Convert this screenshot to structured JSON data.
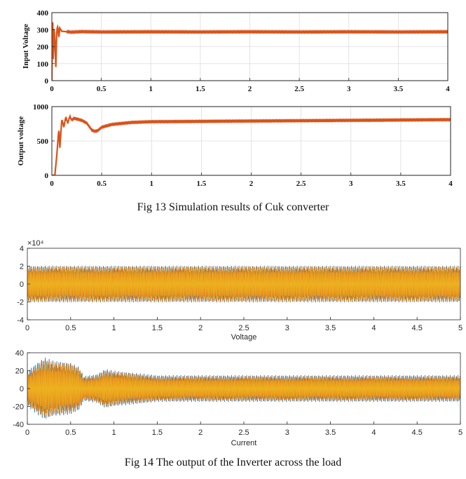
{
  "chart_data": [
    {
      "type": "line",
      "ylabel": "Input Voltage",
      "xlim": [
        0,
        4
      ],
      "ylim": [
        0,
        400
      ],
      "xticks": [
        "0",
        "0.5",
        "1",
        "1.5",
        "2",
        "2.5",
        "3",
        "3.5",
        "4"
      ],
      "yticks": [
        "0",
        "100",
        "200",
        "300",
        "400"
      ],
      "grid": true,
      "color": "#d95319",
      "series": [
        {
          "x": [
            0,
            0.005,
            0.01,
            0.015,
            0.02,
            0.03,
            0.04,
            0.05,
            0.06,
            0.07,
            0.08,
            0.1,
            0.15,
            0.2,
            0.3,
            0.5,
            1,
            1.5,
            2,
            2.5,
            3,
            3.5,
            4
          ],
          "y": [
            0,
            355,
            340,
            20,
            320,
            250,
            80,
            300,
            320,
            250,
            310,
            290,
            288,
            285,
            288,
            286,
            287,
            286,
            287,
            286,
            287,
            286,
            287
          ]
        }
      ]
    },
    {
      "type": "line",
      "ylabel": "Output voltage",
      "xlim": [
        0,
        4
      ],
      "ylim": [
        0,
        1000
      ],
      "xticks": [
        "0",
        "0.5",
        "1",
        "1.5",
        "2",
        "2.5",
        "3",
        "3.5",
        "4"
      ],
      "yticks": [
        "0",
        "500",
        "1000"
      ],
      "grid": true,
      "color": "#d95319",
      "series": [
        {
          "x": [
            0,
            0.03,
            0.05,
            0.07,
            0.08,
            0.1,
            0.12,
            0.14,
            0.16,
            0.18,
            0.2,
            0.22,
            0.25,
            0.3,
            0.35,
            0.4,
            0.43,
            0.46,
            0.5,
            0.6,
            0.8,
            1,
            1.5,
            2,
            2.5,
            3,
            3.5,
            4
          ],
          "y": [
            0,
            0,
            300,
            680,
            400,
            820,
            700,
            850,
            760,
            860,
            800,
            830,
            820,
            800,
            760,
            660,
            640,
            650,
            700,
            740,
            770,
            780,
            785,
            790,
            795,
            800,
            805,
            810
          ]
        }
      ]
    },
    {
      "type": "line",
      "xlabel": "Voltage",
      "xlim": [
        0,
        5
      ],
      "ylim": [
        -4,
        4
      ],
      "y_multiplier": "×10⁴",
      "xticks": [
        "0",
        "0.5",
        "1",
        "1.5",
        "2",
        "2.5",
        "3",
        "3.5",
        "4",
        "4.5",
        "5"
      ],
      "yticks": [
        "-4",
        "-2",
        "0",
        "2",
        "4"
      ],
      "grid": false,
      "series": [
        {
          "color": "#0072bd",
          "amplitude": [
            [
              0,
              2.05
            ],
            [
              5,
              2.05
            ]
          ]
        },
        {
          "color": "#d95319",
          "amplitude": [
            [
              0,
              2.0
            ],
            [
              5,
              2.0
            ]
          ]
        },
        {
          "color": "#edb120",
          "amplitude": [
            [
              0,
              1.95
            ],
            [
              5,
              1.95
            ]
          ]
        }
      ]
    },
    {
      "type": "line",
      "xlabel": "Current",
      "xlim": [
        0,
        5
      ],
      "ylim": [
        -40,
        40
      ],
      "xticks": [
        "0",
        "0.5",
        "1",
        "1.5",
        "2",
        "2.5",
        "3",
        "3.5",
        "4",
        "4.5",
        "5"
      ],
      "yticks": [
        "-40",
        "-20",
        "0",
        "20",
        "40"
      ],
      "grid": false,
      "series": [
        {
          "color": "#0072bd",
          "amplitude": [
            [
              0,
              20
            ],
            [
              0.1,
              28
            ],
            [
              0.2,
              35
            ],
            [
              0.3,
              31
            ],
            [
              0.5,
              29
            ],
            [
              0.6,
              24
            ],
            [
              0.65,
              14
            ],
            [
              0.8,
              16
            ],
            [
              0.9,
              22
            ],
            [
              1.0,
              20
            ],
            [
              1.2,
              18
            ],
            [
              1.5,
              15
            ],
            [
              5,
              15
            ]
          ]
        },
        {
          "color": "#d95319",
          "amplitude": [
            [
              0,
              18
            ],
            [
              0.1,
              26
            ],
            [
              0.2,
              33
            ],
            [
              0.3,
              30
            ],
            [
              0.5,
              28
            ],
            [
              0.6,
              23
            ],
            [
              0.65,
              13
            ],
            [
              0.8,
              15
            ],
            [
              0.9,
              21
            ],
            [
              1.0,
              19
            ],
            [
              1.2,
              17
            ],
            [
              1.5,
              14
            ],
            [
              5,
              14
            ]
          ]
        },
        {
          "color": "#edb120",
          "amplitude": [
            [
              0,
              17
            ],
            [
              0.1,
              25
            ],
            [
              0.2,
              32
            ],
            [
              0.3,
              29
            ],
            [
              0.5,
              27
            ],
            [
              0.6,
              22
            ],
            [
              0.65,
              12
            ],
            [
              0.8,
              14
            ],
            [
              0.9,
              20
            ],
            [
              1.0,
              18
            ],
            [
              1.2,
              16
            ],
            [
              1.5,
              13
            ],
            [
              5,
              13
            ]
          ]
        }
      ]
    }
  ],
  "captions": {
    "fig13": "Fig 13 Simulation results of Cuk converter",
    "fig14": "Fig 14 The output of the Inverter across the load"
  }
}
